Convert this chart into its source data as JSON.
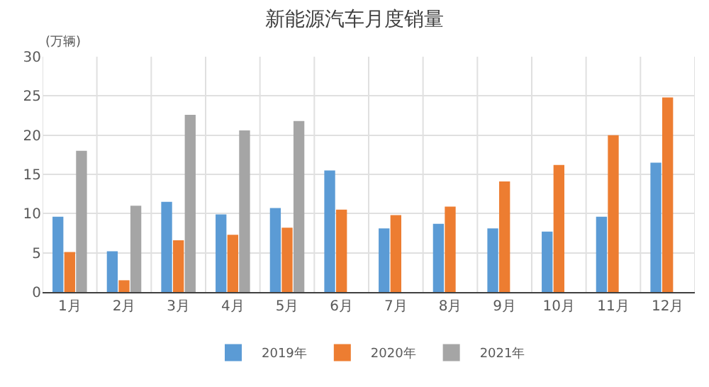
{
  "chart_data": {
    "type": "bar",
    "title": "新能源汽车月度销量",
    "ylabel": "(万辆)",
    "categories": [
      "1月",
      "2月",
      "3月",
      "4月",
      "5月",
      "6月",
      "7月",
      "8月",
      "9月",
      "10月",
      "11月",
      "12月"
    ],
    "series": [
      {
        "name": "2019年",
        "color": "#5b9bd5",
        "values": [
          9.6,
          5.2,
          11.5,
          9.9,
          10.7,
          15.5,
          8.1,
          8.7,
          8.1,
          7.7,
          9.6,
          16.5
        ]
      },
      {
        "name": "2020年",
        "color": "#ed7d31",
        "values": [
          5.1,
          1.5,
          6.6,
          7.3,
          8.2,
          10.5,
          9.8,
          10.9,
          14.1,
          16.2,
          20.0,
          24.8
        ]
      },
      {
        "name": "2021年",
        "color": "#a5a5a5",
        "values": [
          18.0,
          11.0,
          22.6,
          20.6,
          21.8,
          null,
          null,
          null,
          null,
          null,
          null,
          null
        ]
      }
    ],
    "ylim": [
      0,
      30
    ],
    "yticks": [
      0,
      5,
      10,
      15,
      20,
      25,
      30
    ],
    "grid": true,
    "legend": "bottom"
  }
}
